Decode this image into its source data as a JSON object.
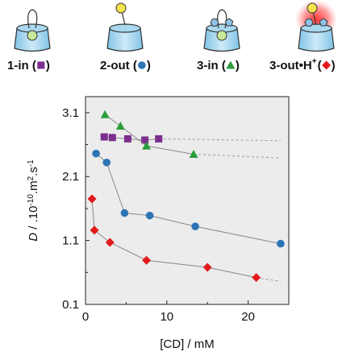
{
  "header": {
    "complexes": [
      {
        "label": "1-in (",
        "close": ")",
        "marker": "square",
        "color": "#7b2e8e",
        "icon": "cup-inside-icon"
      },
      {
        "label": "2-out (",
        "close": ")",
        "marker": "circle",
        "color": "#2e75b6",
        "icon": "cup-outside-icon"
      },
      {
        "label": "3-in (",
        "close": ")",
        "marker": "triangle",
        "color": "#2a9d3c",
        "icon": "cup-inside-icon"
      },
      {
        "label": "3-out•H",
        "sup": "+",
        "open": "(",
        "close": ")",
        "marker": "diamond",
        "color": "#e31a1c",
        "icon": "cup-glowing-icon"
      }
    ]
  },
  "chart_data": {
    "type": "scatter",
    "xlabel": "[CD] / mM",
    "ylabel_parts": {
      "sym": "D",
      "rest": " / .10",
      "exp1": "-10",
      "mid": ".m",
      "exp2": "2",
      "mid2": ".s",
      "exp3": "-1"
    },
    "xlim": [
      0,
      25
    ],
    "ylim": [
      0.1,
      3.35
    ],
    "xticks": [
      0,
      10,
      20
    ],
    "yticks": [
      0.1,
      1.1,
      2.1,
      3.1
    ],
    "ytick_labels": [
      "0.1",
      "1.1",
      "2.1",
      "3.1"
    ],
    "background": "#ececec",
    "series": [
      {
        "marker": "square",
        "color": "#7b2e8e",
        "x": [
          2.3,
          3.3,
          5.2,
          7.3,
          9.0
        ],
        "y": [
          2.72,
          2.71,
          2.69,
          2.67,
          2.69
        ],
        "fit_x": [
          9.0,
          24
        ],
        "fit_y": [
          2.69,
          2.66
        ]
      },
      {
        "marker": "circle",
        "color": "#2e75b6",
        "x": [
          1.3,
          2.6,
          4.8,
          7.9,
          13.5,
          24
        ],
        "y": [
          2.46,
          2.32,
          1.53,
          1.49,
          1.32,
          1.05
        ]
      },
      {
        "marker": "triangle",
        "color": "#2a9d3c",
        "x": [
          2.4,
          4.3,
          7.5,
          13.3
        ],
        "y": [
          3.07,
          2.89,
          2.58,
          2.45
        ],
        "fit_x": [
          13.3,
          24
        ],
        "fit_y": [
          2.45,
          2.39
        ]
      },
      {
        "marker": "diamond",
        "color": "#e31a1c",
        "x": [
          0.8,
          1.1,
          3.0,
          7.5,
          15.0,
          21.0
        ],
        "y": [
          1.75,
          1.26,
          1.07,
          0.79,
          0.68,
          0.52
        ],
        "fit_x": [
          21.0,
          24
        ],
        "fit_y": [
          0.52,
          0.46
        ]
      }
    ]
  }
}
